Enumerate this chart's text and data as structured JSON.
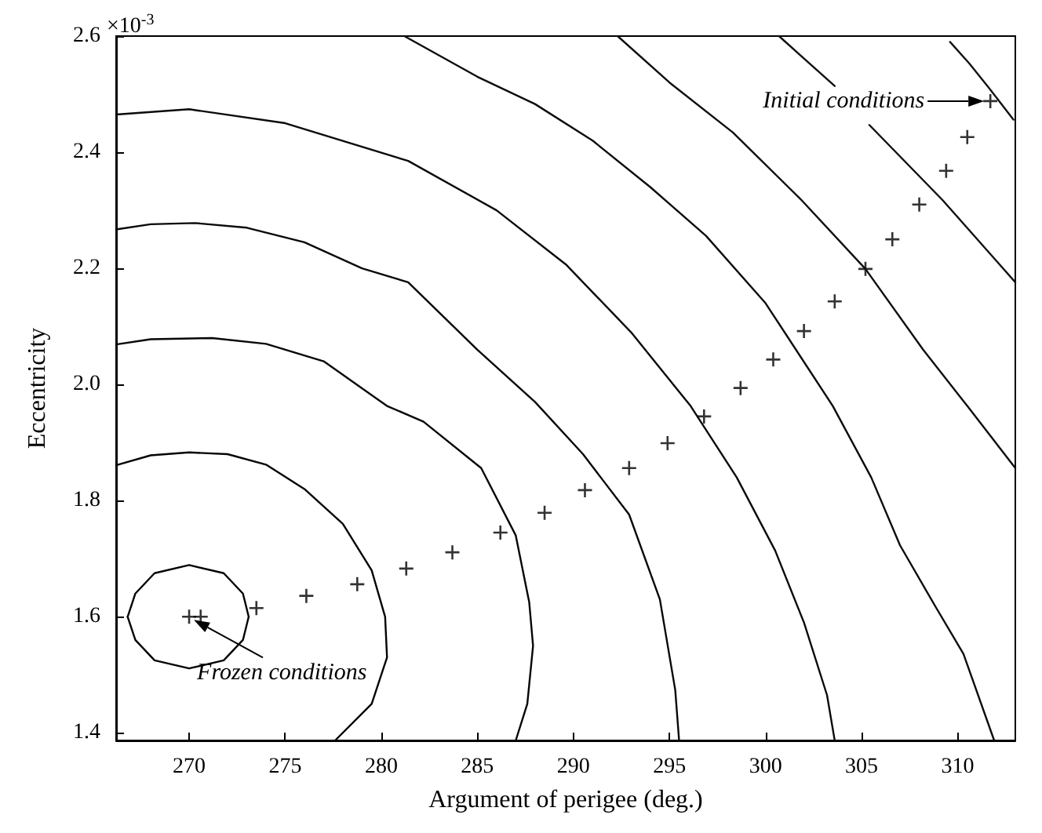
{
  "chart_data": {
    "type": "line",
    "xlabel": "Argument of perigee (deg.)",
    "ylabel": "Eccentricity",
    "xlim": [
      266.2,
      313
    ],
    "ylim": [
      1.387,
      2.6
    ],
    "xticks": [
      270,
      275,
      280,
      285,
      290,
      295,
      300,
      305,
      310
    ],
    "yticks": [
      1.4,
      1.6,
      1.8,
      {
        "value": 2,
        "label": "2.0"
      },
      2.2,
      2.4,
      2.6
    ],
    "grid": false,
    "marker": "none",
    "line_style": "solid",
    "annotations": [
      "×10$^{-3}$",
      {
        "text": "Initial conditions",
        "x": 311.7,
        "y": 2.488
      },
      {
        "text": "Frozen conditions",
        "x": 270,
        "y": 1.6
      }
    ],
    "series": [
      {
        "color": "#020202",
        "x": [
          266.8,
          267.2,
          268.2,
          270,
          271.8,
          272.8,
          273.1
        ],
        "values": [
          1.6,
          1.64,
          1.675,
          1.689,
          1.675,
          1.64,
          1.6
        ]
      },
      {
        "color": "#030303",
        "x": [
          266.8,
          267.2,
          268.2,
          270,
          271.8,
          272.8,
          273.1
        ],
        "values": [
          1.6,
          1.56,
          1.525,
          1.511,
          1.525,
          1.56,
          1.6
        ]
      },
      {
        "color": "#040404",
        "x": [
          266.2,
          268,
          270,
          272,
          274,
          276,
          278,
          279.5,
          280.2,
          280.3,
          279.5,
          277.6
        ],
        "values": [
          1.861,
          1.878,
          1.883,
          1.88,
          1.862,
          1.82,
          1.76,
          1.68,
          1.6,
          1.53,
          1.45,
          1.387
        ]
      },
      {
        "color": "#060606",
        "x": [
          266.2,
          268,
          271.2,
          274,
          277,
          280.3,
          282.2,
          285.2,
          287,
          287.7,
          287.9,
          287.6,
          287.0
        ],
        "values": [
          2.069,
          2.078,
          2.08,
          2.07,
          2.04,
          1.963,
          1.936,
          1.856,
          1.74,
          1.625,
          1.55,
          1.45,
          1.387
        ]
      },
      {
        "color": "#080808",
        "x": [
          266.2,
          268,
          270.3,
          273,
          276,
          279,
          281.4,
          285,
          288,
          290.5,
          292.9,
          294.5,
          295.3,
          295.5
        ],
        "values": [
          2.267,
          2.276,
          2.278,
          2.27,
          2.245,
          2.2,
          2.176,
          2.06,
          1.97,
          1.88,
          1.776,
          1.63,
          1.474,
          1.387
        ]
      },
      {
        "color": "#0a0a0a",
        "x": [
          266.2,
          270,
          275,
          281.4,
          286,
          289.6,
          293,
          296.1,
          298.5,
          300.5,
          302,
          303.2,
          303.6
        ],
        "values": [
          2.465,
          2.474,
          2.45,
          2.385,
          2.3,
          2.207,
          2.09,
          1.963,
          1.84,
          1.714,
          1.59,
          1.465,
          1.387
        ]
      },
      {
        "color": "#0c0c0c",
        "x": [
          281.2,
          285,
          288,
          291,
          294,
          296.9,
          300,
          303.5,
          305.5,
          307,
          308.8,
          310.3,
          311.9
        ],
        "values": [
          2.6,
          2.53,
          2.483,
          2.42,
          2.34,
          2.256,
          2.14,
          1.963,
          1.84,
          1.723,
          1.62,
          1.536,
          1.387
        ]
      },
      {
        "color": "#0e0e0e",
        "x": [
          292.3,
          295,
          298.3,
          301.8,
          305.2,
          308.2,
          310.5,
          313
        ],
        "values": [
          2.6,
          2.52,
          2.434,
          2.32,
          2.199,
          2.06,
          1.963,
          1.856
        ]
      },
      {
        "color": "#101010",
        "x": [
          300.7,
          303.6,
          304.5,
          305.4,
          309.2,
          313
        ],
        "values": [
          2.6,
          2.514,
          null,
          2.447,
          2.318,
          2.176
        ]
      },
      {
        "color": "#121212",
        "x": [
          309.6,
          310.6,
          311.6,
          312.9
        ],
        "values": [
          2.59,
          2.553,
          2.512,
          2.456
        ]
      },
      {
        "type": "scatter",
        "marker": "cross",
        "color": "#000000",
        "x": [
          270.0,
          270.6,
          273.5,
          276.1,
          278.75,
          281.3,
          283.7,
          286.2,
          288.5,
          290.6,
          292.9,
          294.9,
          296.8,
          298.7,
          300.4,
          302.0,
          303.6,
          305.2,
          306.6,
          308.0,
          309.4,
          310.5,
          311.7
        ],
        "values": [
          1.6,
          1.6,
          1.615,
          1.636,
          1.656,
          1.683,
          1.711,
          1.745,
          1.779,
          1.818,
          1.856,
          1.899,
          1.945,
          1.994,
          2.043,
          2.092,
          2.143,
          2.199,
          2.25,
          2.31,
          2.368,
          2.426,
          2.488
        ]
      }
    ]
  }
}
